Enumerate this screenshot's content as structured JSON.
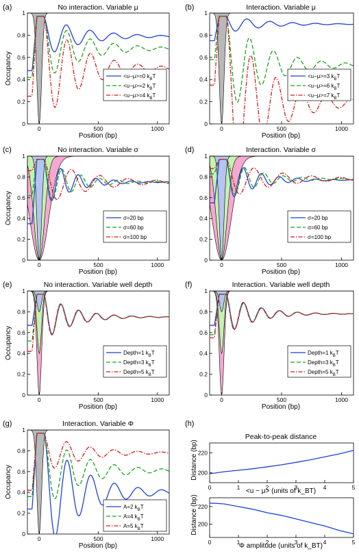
{
  "panels": [
    {
      "label": "(a)",
      "title": "No interaction. Variable μ",
      "ylabel": "Occupancy",
      "xlabel": "Position (bp)",
      "legend": [
        "<u−μ>=0 k_BT",
        "<u−μ>=2 k_BT",
        "<u−μ>=4 k_BT"
      ]
    },
    {
      "label": "(b)",
      "title": "Interaction. Variable μ",
      "ylabel": "",
      "xlabel": "Position (bp)",
      "legend": [
        "<u−μ>=3 k_BT",
        "<u−μ>=6 k_BT",
        "<u−μ>=7 k_BT"
      ]
    },
    {
      "label": "(c)",
      "title": "No interaction. Variable σ",
      "ylabel": "Occupancy",
      "xlabel": "Position (bp)",
      "legend": [
        "σ=20 bp",
        "σ=60 bp",
        "σ=100 bp"
      ]
    },
    {
      "label": "(d)",
      "title": "Interaction. Variable σ",
      "ylabel": "",
      "xlabel": "Position (bp)",
      "legend": [
        "σ=20 bp",
        "σ=60 bp",
        "σ=100 bp"
      ]
    },
    {
      "label": "(e)",
      "title": "No interaction. Variable well depth",
      "ylabel": "Occupancy",
      "xlabel": "Position (bp)",
      "legend": [
        "Depth=1 k_BT",
        "Depth=3 k_BT",
        "Depth=5 k_BT"
      ]
    },
    {
      "label": "(f)",
      "title": "Interaction. Variable well depth",
      "ylabel": "",
      "xlabel": "Position (bp)",
      "legend": [
        "Depth=1 k_BT",
        "Depth=3 k_BT",
        "Depth=5 k_BT"
      ]
    },
    {
      "label": "(g)",
      "title": "Interaction. Variable Φ",
      "ylabel": "Occupancy",
      "xlabel": "Position (bp)",
      "legend": [
        "A=2 k_BT",
        "A=4 k_BT",
        "A=5 k_BT"
      ]
    },
    {
      "label": "(h)",
      "title": "Peak-to-peak distance",
      "ylabel": "Distance (bp)",
      "xlabel": "<u − μ> (units of k_BT)"
    },
    {
      "label": "",
      "title": "",
      "ylabel": "Distance (bp)",
      "xlabel": "Φ amplitude (units of k_BT)"
    }
  ],
  "colors": {
    "blue": "#1f3fd8",
    "green": "#19a319",
    "red": "#d81818",
    "gray": "#b8b8b8",
    "light_blue": "#b7c3f2",
    "light_green": "#c4f2b0",
    "pink": "#f5a9d0"
  },
  "chart_data": [
    {
      "type": "line",
      "panel": "a",
      "xlim": [
        -100,
        1100
      ],
      "ylim": [
        0,
        1
      ],
      "xticks": [
        0,
        500,
        1000
      ],
      "yticks": [
        0,
        0.2,
        0.4,
        0.6,
        0.8,
        1
      ],
      "series": [
        {
          "name": "<u−μ>=0 k_BT",
          "color": "blue",
          "style": "solid",
          "plateau": 0.79,
          "amp": 0.16,
          "period": 200,
          "start": 0.48
        },
        {
          "name": "<u−μ>=2 k_BT",
          "color": "green",
          "style": "dashed",
          "plateau": 0.68,
          "amp": 0.18,
          "period": 200,
          "start": 0.42
        },
        {
          "name": "<u−μ>=4 k_BT",
          "color": "red",
          "style": "dashdot",
          "plateau": 0.5,
          "amp": 0.16,
          "period": 200,
          "start": 0.25
        }
      ]
    },
    {
      "type": "line",
      "panel": "b",
      "xlim": [
        -100,
        1100
      ],
      "ylim": [
        0,
        1
      ],
      "xticks": [
        0,
        500,
        1000
      ],
      "yticks": [
        0,
        0.2,
        0.4,
        0.6,
        0.8,
        1
      ],
      "series": [
        {
          "name": "<u−μ>=3 k_BT",
          "color": "blue",
          "style": "solid",
          "plateau": 0.9,
          "amp": 0.14,
          "period": 190,
          "start": 0.75
        },
        {
          "name": "<u−μ>=6 k_BT",
          "color": "green",
          "style": "dashed",
          "plateau": 0.53,
          "amp": 0.26,
          "period": 200,
          "start": 0.58
        },
        {
          "name": "<u−μ>=7 k_BT",
          "color": "red",
          "style": "dashdot",
          "plateau": 0.19,
          "amp": 0.3,
          "period": 210,
          "start": 0.35
        }
      ]
    },
    {
      "type": "line",
      "panel": "c",
      "xlim": [
        -100,
        1100
      ],
      "ylim": [
        0,
        1
      ],
      "xticks": [
        0,
        500,
        1000
      ],
      "yticks": [
        0,
        0.2,
        0.4,
        0.6,
        0.8,
        1
      ],
      "series": [
        {
          "name": "σ=20 bp",
          "color": "blue",
          "style": "solid",
          "plateau": 0.75,
          "amp": 0.28,
          "period": 150,
          "start": 0.35
        },
        {
          "name": "σ=60 bp",
          "color": "green",
          "style": "dashed",
          "plateau": 0.75,
          "amp": 0.2,
          "period": 160,
          "start": 0.62
        },
        {
          "name": "σ=100 bp",
          "color": "red",
          "style": "dashdot",
          "plateau": 0.75,
          "amp": 0.12,
          "period": 240,
          "start": 0.86
        }
      ]
    },
    {
      "type": "line",
      "panel": "d",
      "xlim": [
        -100,
        1100
      ],
      "ylim": [
        0,
        1
      ],
      "xticks": [
        0,
        500,
        1000
      ],
      "yticks": [
        0,
        0.2,
        0.4,
        0.6,
        0.8,
        1
      ],
      "series": [
        {
          "name": "σ=20 bp",
          "color": "blue",
          "style": "solid",
          "plateau": 0.77,
          "amp": 0.22,
          "period": 150,
          "start": 0.55
        },
        {
          "name": "σ=60 bp",
          "color": "green",
          "style": "dashed",
          "plateau": 0.78,
          "amp": 0.18,
          "period": 160,
          "start": 0.83
        },
        {
          "name": "σ=100 bp",
          "color": "red",
          "style": "dashdot",
          "plateau": 0.78,
          "amp": 0.12,
          "period": 240,
          "start": 0.88
        }
      ]
    },
    {
      "type": "line",
      "panel": "e",
      "xlim": [
        -100,
        1100
      ],
      "ylim": [
        0,
        1
      ],
      "xticks": [
        0,
        500,
        1000
      ],
      "yticks": [
        0,
        0.2,
        0.4,
        0.6,
        0.8,
        1
      ],
      "series": [
        {
          "name": "Depth=1 k_BT",
          "color": "blue",
          "style": "solid",
          "plateau": 0.75,
          "amp": 0.1,
          "period": 150,
          "start": 0.67
        },
        {
          "name": "Depth=3 k_BT",
          "color": "green",
          "style": "dashed",
          "plateau": 0.75,
          "amp": 0.18,
          "period": 150,
          "start": 0.52
        },
        {
          "name": "Depth=5 k_BT",
          "color": "red",
          "style": "dashdot",
          "plateau": 0.75,
          "amp": 0.2,
          "period": 150,
          "start": 0.42
        }
      ]
    },
    {
      "type": "line",
      "panel": "f",
      "xlim": [
        -100,
        1100
      ],
      "ylim": [
        0,
        1
      ],
      "xticks": [
        0,
        500,
        1000
      ],
      "yticks": [
        0,
        0.2,
        0.4,
        0.6,
        0.8,
        1
      ],
      "series": [
        {
          "name": "Depth=1 k_BT",
          "color": "blue",
          "style": "solid",
          "plateau": 0.78,
          "amp": 0.1,
          "period": 150,
          "start": 0.67
        },
        {
          "name": "Depth=3 k_BT",
          "color": "green",
          "style": "dashed",
          "plateau": 0.78,
          "amp": 0.17,
          "period": 150,
          "start": 0.58
        },
        {
          "name": "Depth=5 k_BT",
          "color": "red",
          "style": "dashdot",
          "plateau": 0.78,
          "amp": 0.2,
          "period": 150,
          "start": 0.55
        }
      ]
    },
    {
      "type": "line",
      "panel": "g",
      "xlim": [
        -100,
        1100
      ],
      "ylim": [
        0,
        1
      ],
      "xticks": [
        0,
        500,
        1000
      ],
      "yticks": [
        0,
        0.2,
        0.4,
        0.6,
        0.8,
        1
      ],
      "series": [
        {
          "name": "A=2 k_BT",
          "color": "blue",
          "style": "solid",
          "plateau": 0.4,
          "amp": 0.1,
          "period": 200,
          "start": 0.24
        },
        {
          "name": "A=4 k_BT",
          "color": "green",
          "style": "dashed",
          "plateau": 0.61,
          "amp": 0.16,
          "period": 200,
          "start": 0.36
        },
        {
          "name": "A=5 k_BT",
          "color": "red",
          "style": "dashdot",
          "plateau": 0.78,
          "amp": 0.14,
          "period": 200,
          "start": 0.42
        }
      ]
    },
    {
      "type": "line",
      "panel": "h-top",
      "xlim": [
        0,
        5
      ],
      "ylim": [
        190,
        230
      ],
      "xticks": [
        0,
        1,
        2,
        3,
        4,
        5
      ],
      "yticks": [
        200,
        220
      ],
      "series": [
        {
          "name": "",
          "color": "blue",
          "style": "solid",
          "x": [
            0,
            0.5,
            1,
            1.5,
            2,
            2.5,
            3,
            3.5,
            4,
            4.5,
            5
          ],
          "y": [
            199,
            201,
            202.5,
            204,
            206,
            208,
            210.5,
            213,
            216,
            219,
            222.5
          ]
        }
      ]
    },
    {
      "type": "line",
      "panel": "h-bottom",
      "xlim": [
        0,
        5
      ],
      "ylim": [
        185,
        230
      ],
      "xticks": [
        0,
        1,
        2,
        3,
        4,
        5
      ],
      "yticks": [
        200,
        220
      ],
      "series": [
        {
          "name": "",
          "color": "blue",
          "style": "solid",
          "x": [
            0,
            0.5,
            1,
            1.5,
            2,
            2.5,
            3,
            3.5,
            4,
            4.5,
            5
          ],
          "y": [
            224,
            223,
            220,
            217,
            213,
            210,
            206,
            202,
            198,
            193,
            189
          ]
        }
      ]
    }
  ]
}
